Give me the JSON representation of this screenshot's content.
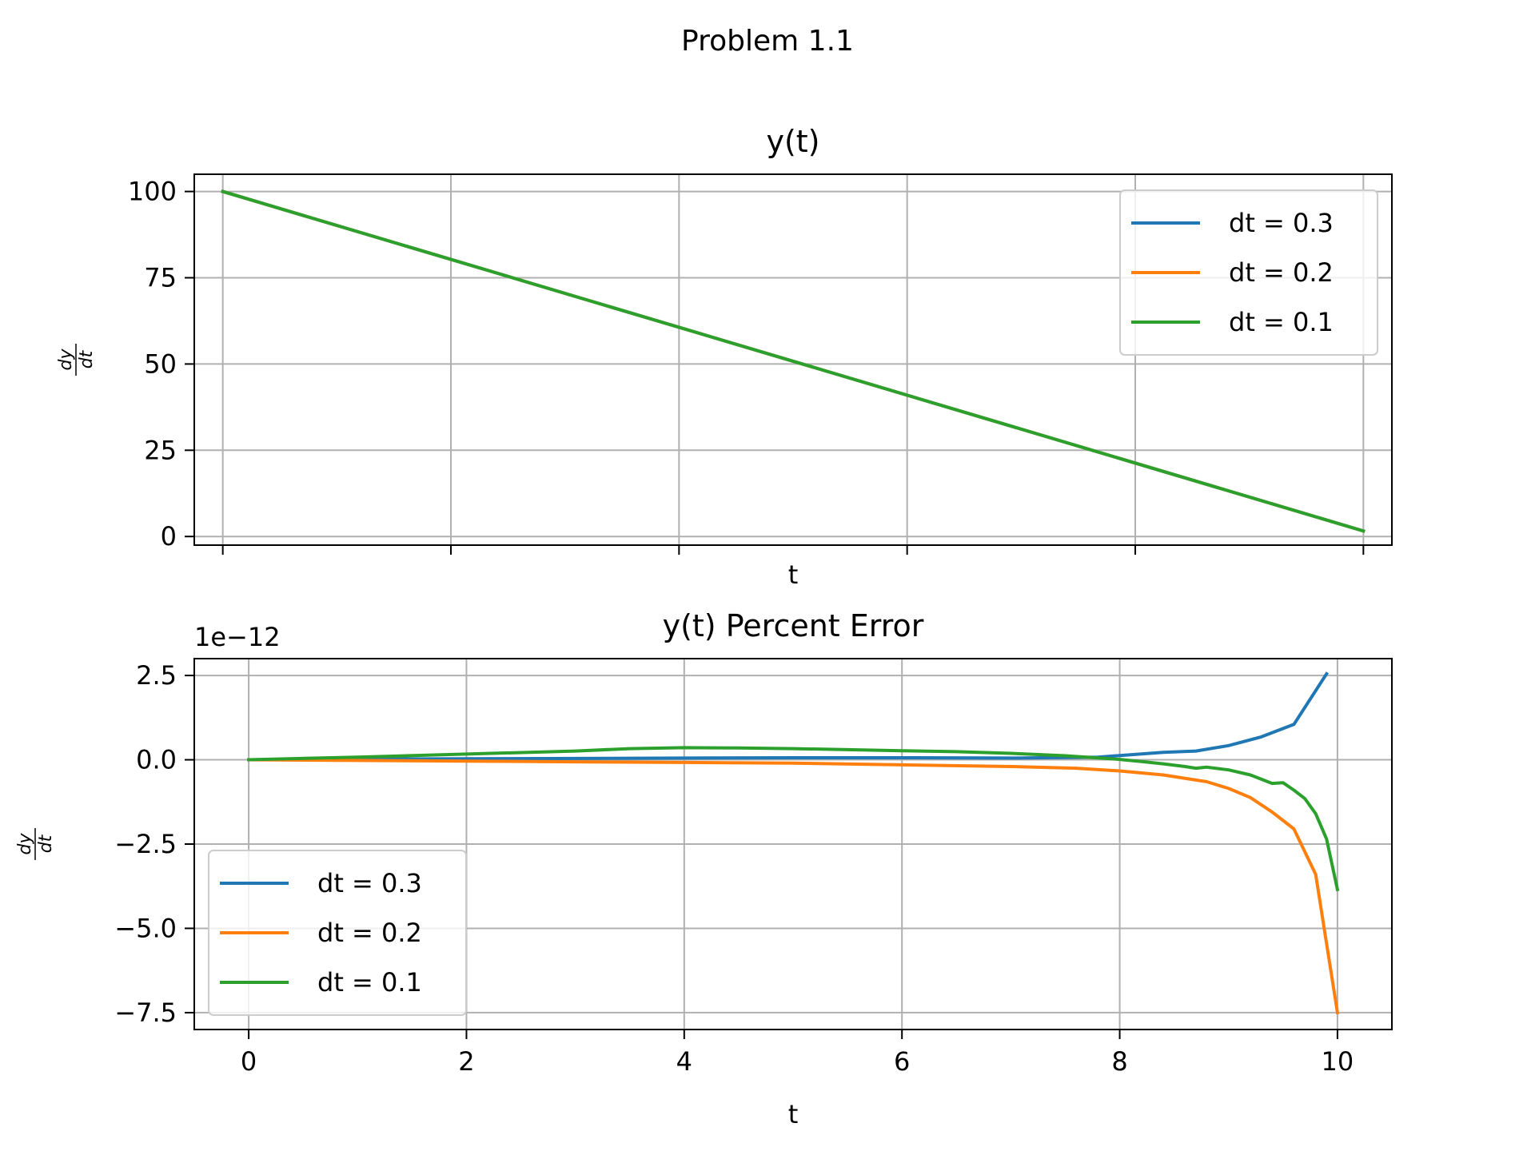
{
  "figure": {
    "suptitle": "Problem 1.1"
  },
  "chart_data": [
    {
      "type": "line",
      "title": "y(t)",
      "xlabel": "t",
      "ylabel_num": "dy",
      "ylabel_den": "dt",
      "xlim": [
        -0.25,
        10.25
      ],
      "ylim": [
        -2.5,
        105
      ],
      "xticks": [
        0,
        2,
        4,
        6,
        8,
        10
      ],
      "yticks": [
        {
          "value": 0,
          "label": "0"
        },
        {
          "value": 25,
          "label": "25"
        },
        {
          "value": 50,
          "label": "50"
        },
        {
          "value": 75,
          "label": "75"
        },
        {
          "value": 100,
          "label": "100"
        }
      ],
      "show_xtick_labels": false,
      "grid": true,
      "legend_position": "upper-right",
      "series": [
        {
          "name": "dt = 0.3",
          "color": "#1f77b4",
          "points": [
            [
              0,
              100
            ],
            [
              10,
              1.6
            ]
          ]
        },
        {
          "name": "dt = 0.2",
          "color": "#ff7f0e",
          "points": [
            [
              0,
              100
            ],
            [
              10,
              1.6
            ]
          ]
        },
        {
          "name": "dt = 0.1",
          "color": "#2ca02c",
          "points": [
            [
              0,
              100
            ],
            [
              10,
              1.6
            ]
          ]
        }
      ]
    },
    {
      "type": "line",
      "title": "y(t) Percent Error",
      "xlabel": "t",
      "ylabel_num": "dy",
      "ylabel_den": "dt",
      "offset_label": "1e−12",
      "xlim": [
        -0.5,
        10.5
      ],
      "ylim": [
        -8.0,
        3.0
      ],
      "xticks": [
        0,
        2,
        4,
        6,
        8,
        10
      ],
      "yticks": [
        {
          "value": 2.5,
          "label": "2.5"
        },
        {
          "value": 0.0,
          "label": "0.0"
        },
        {
          "value": -2.5,
          "label": "−2.5"
        },
        {
          "value": -5.0,
          "label": "−5.0"
        },
        {
          "value": -7.5,
          "label": "−7.5"
        }
      ],
      "show_xtick_labels": true,
      "grid": true,
      "legend_position": "lower-left",
      "series": [
        {
          "name": "dt = 0.3",
          "color": "#1f77b4",
          "points": [
            [
              0,
              0
            ],
            [
              1,
              0.02
            ],
            [
              2,
              0.03
            ],
            [
              3,
              0.04
            ],
            [
              4,
              0.05
            ],
            [
              5,
              0.06
            ],
            [
              6,
              0.06
            ],
            [
              7,
              0.05
            ],
            [
              7.8,
              0.08
            ],
            [
              8.1,
              0.15
            ],
            [
              8.4,
              0.22
            ],
            [
              8.7,
              0.26
            ],
            [
              9.0,
              0.42
            ],
            [
              9.3,
              0.68
            ],
            [
              9.6,
              1.05
            ],
            [
              9.9,
              2.55
            ]
          ]
        },
        {
          "name": "dt = 0.2",
          "color": "#ff7f0e",
          "points": [
            [
              0,
              0
            ],
            [
              1,
              -0.02
            ],
            [
              2,
              -0.04
            ],
            [
              3,
              -0.06
            ],
            [
              4,
              -0.08
            ],
            [
              5,
              -0.1
            ],
            [
              6,
              -0.15
            ],
            [
              7,
              -0.2
            ],
            [
              7.6,
              -0.25
            ],
            [
              8.0,
              -0.33
            ],
            [
              8.4,
              -0.45
            ],
            [
              8.8,
              -0.65
            ],
            [
              9.0,
              -0.85
            ],
            [
              9.2,
              -1.12
            ],
            [
              9.4,
              -1.55
            ],
            [
              9.6,
              -2.05
            ],
            [
              9.8,
              -3.4
            ],
            [
              10.0,
              -7.5
            ]
          ]
        },
        {
          "name": "dt = 0.1",
          "color": "#2ca02c",
          "points": [
            [
              0,
              0
            ],
            [
              1,
              0.08
            ],
            [
              2,
              0.17
            ],
            [
              3,
              0.26
            ],
            [
              3.5,
              0.33
            ],
            [
              4,
              0.36
            ],
            [
              4.5,
              0.35
            ],
            [
              5,
              0.33
            ],
            [
              5.5,
              0.3
            ],
            [
              6,
              0.27
            ],
            [
              6.5,
              0.24
            ],
            [
              7,
              0.19
            ],
            [
              7.5,
              0.12
            ],
            [
              8,
              0.01
            ],
            [
              8.2,
              -0.05
            ],
            [
              8.4,
              -0.12
            ],
            [
              8.6,
              -0.2
            ],
            [
              8.7,
              -0.25
            ],
            [
              8.8,
              -0.22
            ],
            [
              9.0,
              -0.3
            ],
            [
              9.2,
              -0.45
            ],
            [
              9.4,
              -0.7
            ],
            [
              9.5,
              -0.68
            ],
            [
              9.6,
              -0.9
            ],
            [
              9.7,
              -1.15
            ],
            [
              9.8,
              -1.6
            ],
            [
              9.9,
              -2.35
            ],
            [
              10.0,
              -3.85
            ]
          ]
        }
      ]
    }
  ]
}
